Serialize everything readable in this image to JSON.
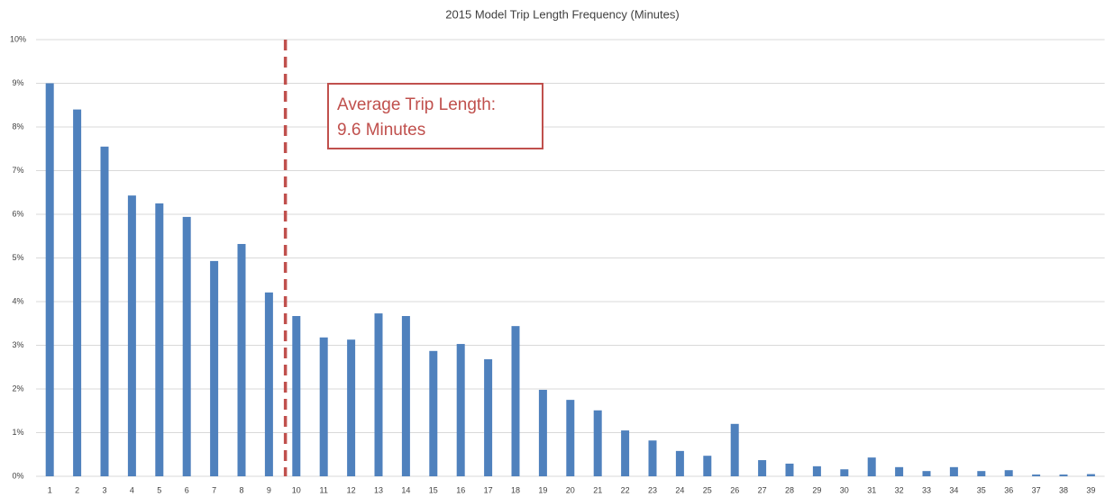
{
  "chart_data": {
    "type": "bar",
    "title": "2015 Model Trip Length Frequency (Minutes)",
    "categories": [
      "1",
      "2",
      "3",
      "4",
      "5",
      "6",
      "7",
      "8",
      "9",
      "10",
      "11",
      "12",
      "13",
      "14",
      "15",
      "16",
      "17",
      "18",
      "19",
      "20",
      "21",
      "22",
      "23",
      "24",
      "25",
      "26",
      "27",
      "28",
      "29",
      "30",
      "31",
      "32",
      "33",
      "34",
      "35",
      "36",
      "37",
      "38",
      "39"
    ],
    "values": [
      9.0,
      8.4,
      7.55,
      6.43,
      6.25,
      5.94,
      4.93,
      5.32,
      4.21,
      3.67,
      3.18,
      3.13,
      3.73,
      3.67,
      2.87,
      3.03,
      2.68,
      3.44,
      1.98,
      1.75,
      1.51,
      1.05,
      0.82,
      0.58,
      0.47,
      1.2,
      0.37,
      0.29,
      0.23,
      0.16,
      0.43,
      0.21,
      0.12,
      0.21,
      0.12,
      0.14,
      0.04,
      0.04,
      0.05
    ],
    "color": "#4f81bd",
    "ylim": [
      0,
      10
    ],
    "yticks": [
      {
        "value": 0,
        "label": "0%"
      },
      {
        "value": 1,
        "label": "1%"
      },
      {
        "value": 2,
        "label": "2%"
      },
      {
        "value": 3,
        "label": "3%"
      },
      {
        "value": 4,
        "label": "4%"
      },
      {
        "value": 5,
        "label": "5%"
      },
      {
        "value": 6,
        "label": "6%"
      },
      {
        "value": 7,
        "label": "7%"
      },
      {
        "value": 8,
        "label": "8%"
      },
      {
        "value": 9,
        "label": "9%"
      },
      {
        "value": 10,
        "label": "10%"
      }
    ],
    "grid": true,
    "reference_line": {
      "value": 9.6,
      "color": "#c0504d",
      "annotation": [
        "Average Trip Length:",
        "9.6 Minutes"
      ]
    }
  }
}
